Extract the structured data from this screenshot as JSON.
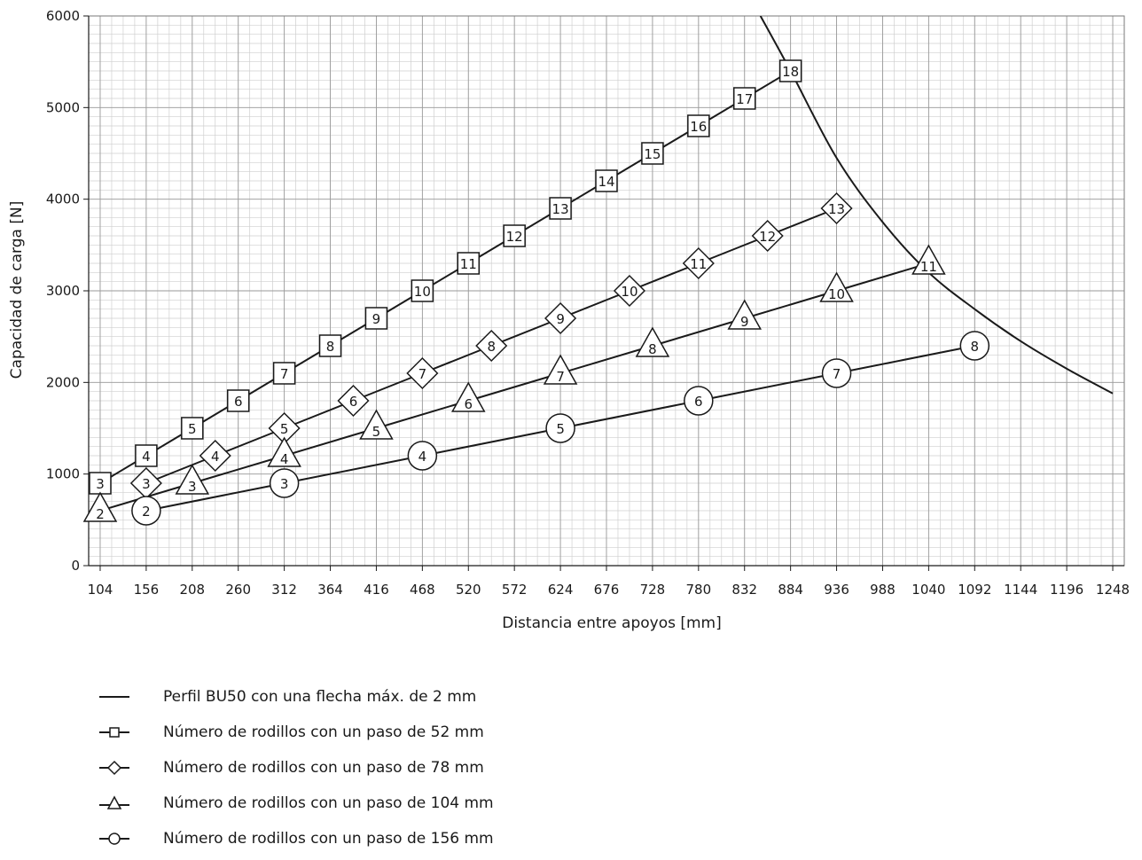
{
  "chart_data": {
    "type": "line",
    "xlabel": "Distancia entre apoyos [mm]",
    "ylabel": "Capacidad de carga [N]",
    "xlim": [
      104,
      1248
    ],
    "ylim": [
      0,
      6000
    ],
    "x_ticks": [
      104,
      156,
      208,
      260,
      312,
      364,
      416,
      468,
      520,
      572,
      624,
      676,
      728,
      780,
      832,
      884,
      936,
      988,
      1040,
      1092,
      1144,
      1196,
      1248
    ],
    "y_ticks": [
      0,
      1000,
      2000,
      3000,
      4000,
      5000,
      6000
    ],
    "grid": true,
    "legend_position": "bottom",
    "limit_curve": {
      "name": "Perfil BU50 con una flecha máx. de 2 mm",
      "x": [
        850,
        884,
        936,
        988,
        1040,
        1092,
        1144,
        1196,
        1248
      ],
      "y": [
        6000,
        5400,
        4450,
        3750,
        3200,
        2800,
        2450,
        2150,
        1880
      ]
    },
    "series": [
      {
        "name": "Número de rodillos con un paso de 52 mm",
        "marker": "square",
        "x": [
          104,
          156,
          208,
          260,
          312,
          364,
          416,
          468,
          520,
          572,
          624,
          676,
          728,
          780,
          832,
          884
        ],
        "y": [
          900,
          1200,
          1500,
          1800,
          2100,
          2400,
          2700,
          3000,
          3300,
          3600,
          3900,
          4200,
          4500,
          4800,
          5100,
          5400
        ],
        "labels": [
          "3",
          "4",
          "5",
          "6",
          "7",
          "8",
          "9",
          "10",
          "11",
          "12",
          "13",
          "14",
          "15",
          "16",
          "17",
          "18"
        ]
      },
      {
        "name": "Número de rodillos con un paso de 78 mm",
        "marker": "diamond",
        "x": [
          156,
          234,
          312,
          390,
          468,
          546,
          624,
          702,
          780,
          858,
          936
        ],
        "y": [
          900,
          1200,
          1500,
          1800,
          2100,
          2400,
          2700,
          3000,
          3300,
          3600,
          3900
        ],
        "labels": [
          "3",
          "4",
          "5",
          "6",
          "7",
          "8",
          "9",
          "10",
          "11",
          "12",
          "13"
        ]
      },
      {
        "name": "Número de rodillos con un paso de 104 mm",
        "marker": "triangle",
        "x": [
          104,
          208,
          312,
          416,
          520,
          624,
          728,
          832,
          936,
          1040
        ],
        "y": [
          600,
          900,
          1200,
          1500,
          1800,
          2100,
          2400,
          2700,
          3000,
          3300
        ],
        "labels": [
          "2",
          "3",
          "4",
          "5",
          "6",
          "7",
          "8",
          "9",
          "10",
          "11"
        ]
      },
      {
        "name": "Número de rodillos con un paso de 156 mm",
        "marker": "circle",
        "x": [
          156,
          312,
          468,
          624,
          780,
          936,
          1092
        ],
        "y": [
          600,
          900,
          1200,
          1500,
          1800,
          2100,
          2400
        ],
        "labels": [
          "2",
          "3",
          "4",
          "5",
          "6",
          "7",
          "8"
        ]
      }
    ]
  }
}
